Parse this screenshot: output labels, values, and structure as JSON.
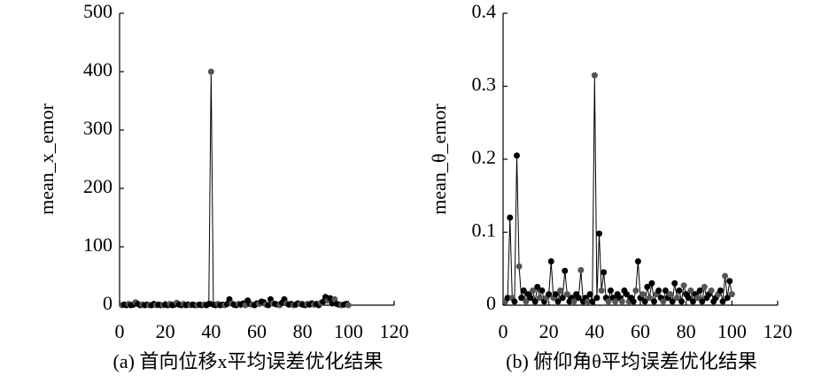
{
  "chart_data": [
    {
      "type": "line",
      "caption": "(a) 首向位移x平均误差优化结果",
      "ylabel": "mean_x_emor",
      "color": "#000000",
      "x": [
        1,
        2,
        3,
        4,
        5,
        6,
        7,
        8,
        9,
        10,
        11,
        12,
        13,
        14,
        15,
        16,
        17,
        18,
        19,
        20,
        21,
        22,
        23,
        24,
        25,
        26,
        27,
        28,
        29,
        30,
        31,
        32,
        33,
        34,
        35,
        36,
        37,
        38,
        39,
        40,
        41,
        42,
        43,
        44,
        45,
        46,
        47,
        48,
        49,
        50,
        51,
        52,
        53,
        54,
        55,
        56,
        57,
        58,
        59,
        60,
        61,
        62,
        63,
        64,
        65,
        66,
        67,
        68,
        69,
        70,
        71,
        72,
        73,
        74,
        75,
        76,
        77,
        78,
        79,
        80,
        81,
        82,
        83,
        84,
        85,
        86,
        87,
        88,
        89,
        90,
        91,
        92,
        93,
        94,
        95,
        96,
        97,
        98,
        99,
        100
      ],
      "values": [
        0,
        1,
        0,
        2,
        0,
        1,
        5,
        2,
        0,
        1,
        0,
        1,
        0,
        0,
        2,
        0,
        1,
        0,
        0,
        1,
        0,
        2,
        0,
        1,
        4,
        1,
        0,
        2,
        0,
        1,
        0,
        1,
        0,
        0,
        1,
        0,
        1,
        0,
        2,
        400,
        1,
        0,
        2,
        0,
        1,
        0,
        2,
        10,
        3,
        1,
        0,
        2,
        1,
        3,
        0,
        8,
        2,
        1,
        0,
        3,
        2,
        6,
        5,
        1,
        0,
        10,
        3,
        2,
        1,
        0,
        4,
        10,
        3,
        1,
        2,
        0,
        1,
        3,
        2,
        1,
        0,
        2,
        1,
        3,
        1,
        2,
        0,
        4,
        6,
        14,
        8,
        12,
        3,
        10,
        2,
        1,
        0,
        1,
        2,
        0
      ],
      "xlim": [
        0,
        120
      ],
      "xticks": [
        0,
        20,
        40,
        60,
        80,
        100,
        120
      ],
      "ylim": [
        0,
        500
      ],
      "yticks": [
        0,
        100,
        200,
        300,
        400,
        500
      ]
    },
    {
      "type": "line",
      "caption": "(b) 俯仰角θ平均误差优化结果",
      "ylabel": "mean_θ_emor",
      "color": "#000000",
      "x": [
        1,
        2,
        3,
        4,
        5,
        6,
        7,
        8,
        9,
        10,
        11,
        12,
        13,
        14,
        15,
        16,
        17,
        18,
        19,
        20,
        21,
        22,
        23,
        24,
        25,
        26,
        27,
        28,
        29,
        30,
        31,
        32,
        33,
        34,
        35,
        36,
        37,
        38,
        39,
        40,
        41,
        42,
        43,
        44,
        45,
        46,
        47,
        48,
        49,
        50,
        51,
        52,
        53,
        54,
        55,
        56,
        57,
        58,
        59,
        60,
        61,
        62,
        63,
        64,
        65,
        66,
        67,
        68,
        69,
        70,
        71,
        72,
        73,
        74,
        75,
        76,
        77,
        78,
        79,
        80,
        81,
        82,
        83,
        84,
        85,
        86,
        87,
        88,
        89,
        90,
        91,
        92,
        93,
        94,
        95,
        96,
        97,
        98,
        99,
        100
      ],
      "values": [
        0.005,
        0.01,
        0.12,
        0.01,
        0.005,
        0.205,
        0.053,
        0.01,
        0.02,
        0.005,
        0.015,
        0.01,
        0.02,
        0.005,
        0.025,
        0.01,
        0.02,
        0.005,
        0.01,
        0.015,
        0.06,
        0.01,
        0.015,
        0.005,
        0.02,
        0.01,
        0.047,
        0.015,
        0.005,
        0.01,
        0.005,
        0.015,
        0.01,
        0.048,
        0.005,
        0.01,
        0.005,
        0.015,
        0.005,
        0.315,
        0.01,
        0.098,
        0.02,
        0.045,
        0.01,
        0.005,
        0.02,
        0.01,
        0.005,
        0.015,
        0.01,
        0.005,
        0.02,
        0.015,
        0.005,
        0.01,
        0.005,
        0.02,
        0.06,
        0.01,
        0.015,
        0.005,
        0.025,
        0.01,
        0.03,
        0.005,
        0.015,
        0.02,
        0.01,
        0.005,
        0.02,
        0.01,
        0.015,
        0.005,
        0.03,
        0.01,
        0.02,
        0.005,
        0.027,
        0.015,
        0.01,
        0.02,
        0.005,
        0.015,
        0.01,
        0.02,
        0.005,
        0.025,
        0.01,
        0.015,
        0.02,
        0.005,
        0.01,
        0.015,
        0.02,
        0.005,
        0.04,
        0.01,
        0.033,
        0.015
      ],
      "xlim": [
        0,
        120
      ],
      "xticks": [
        0,
        20,
        40,
        60,
        80,
        100,
        120
      ],
      "ylim": [
        0,
        0.4
      ],
      "yticks": [
        0,
        0.1,
        0.2,
        0.3,
        0.4
      ]
    }
  ]
}
